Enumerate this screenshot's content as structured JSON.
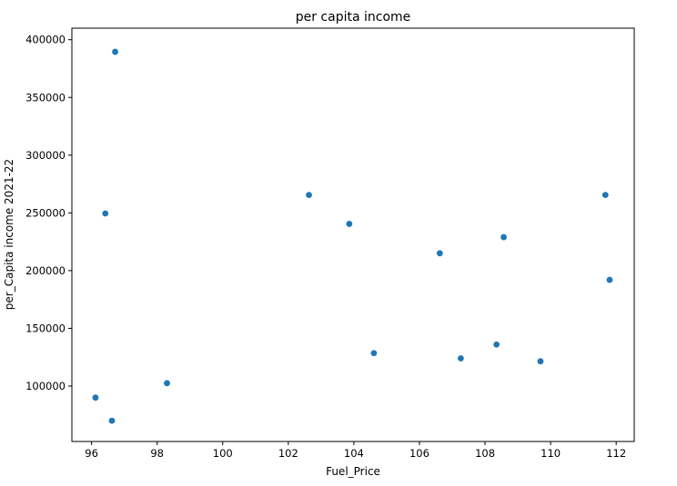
{
  "chart_data": {
    "type": "scatter",
    "title": "per capita income",
    "xlabel": "Fuel_Price",
    "ylabel": "per_Capita income 2021-22",
    "xlim": [
      95.4,
      112.55
    ],
    "ylim": [
      52000,
      410000
    ],
    "xticks": [
      96,
      98,
      100,
      102,
      104,
      106,
      108,
      110,
      112
    ],
    "yticks": [
      100000,
      150000,
      200000,
      250000,
      300000,
      350000,
      400000
    ],
    "xtick_labels": [
      "96",
      "98",
      "100",
      "102",
      "104",
      "106",
      "108",
      "110",
      "112"
    ],
    "ytick_labels": [
      "100000",
      "150000",
      "200000",
      "250000",
      "300000",
      "350000",
      "400000"
    ],
    "grid": false,
    "marker_color": "#1f77b4",
    "points": [
      {
        "x": 96.72,
        "y": 389500
      },
      {
        "x": 96.42,
        "y": 249500
      },
      {
        "x": 96.12,
        "y": 90000
      },
      {
        "x": 96.62,
        "y": 70000
      },
      {
        "x": 98.3,
        "y": 102500
      },
      {
        "x": 102.63,
        "y": 265500
      },
      {
        "x": 103.86,
        "y": 240500
      },
      {
        "x": 104.61,
        "y": 128500
      },
      {
        "x": 106.62,
        "y": 215000
      },
      {
        "x": 107.26,
        "y": 124000
      },
      {
        "x": 108.35,
        "y": 136000
      },
      {
        "x": 108.57,
        "y": 229000
      },
      {
        "x": 109.69,
        "y": 121500
      },
      {
        "x": 111.67,
        "y": 265500
      },
      {
        "x": 111.8,
        "y": 192000
      }
    ]
  }
}
